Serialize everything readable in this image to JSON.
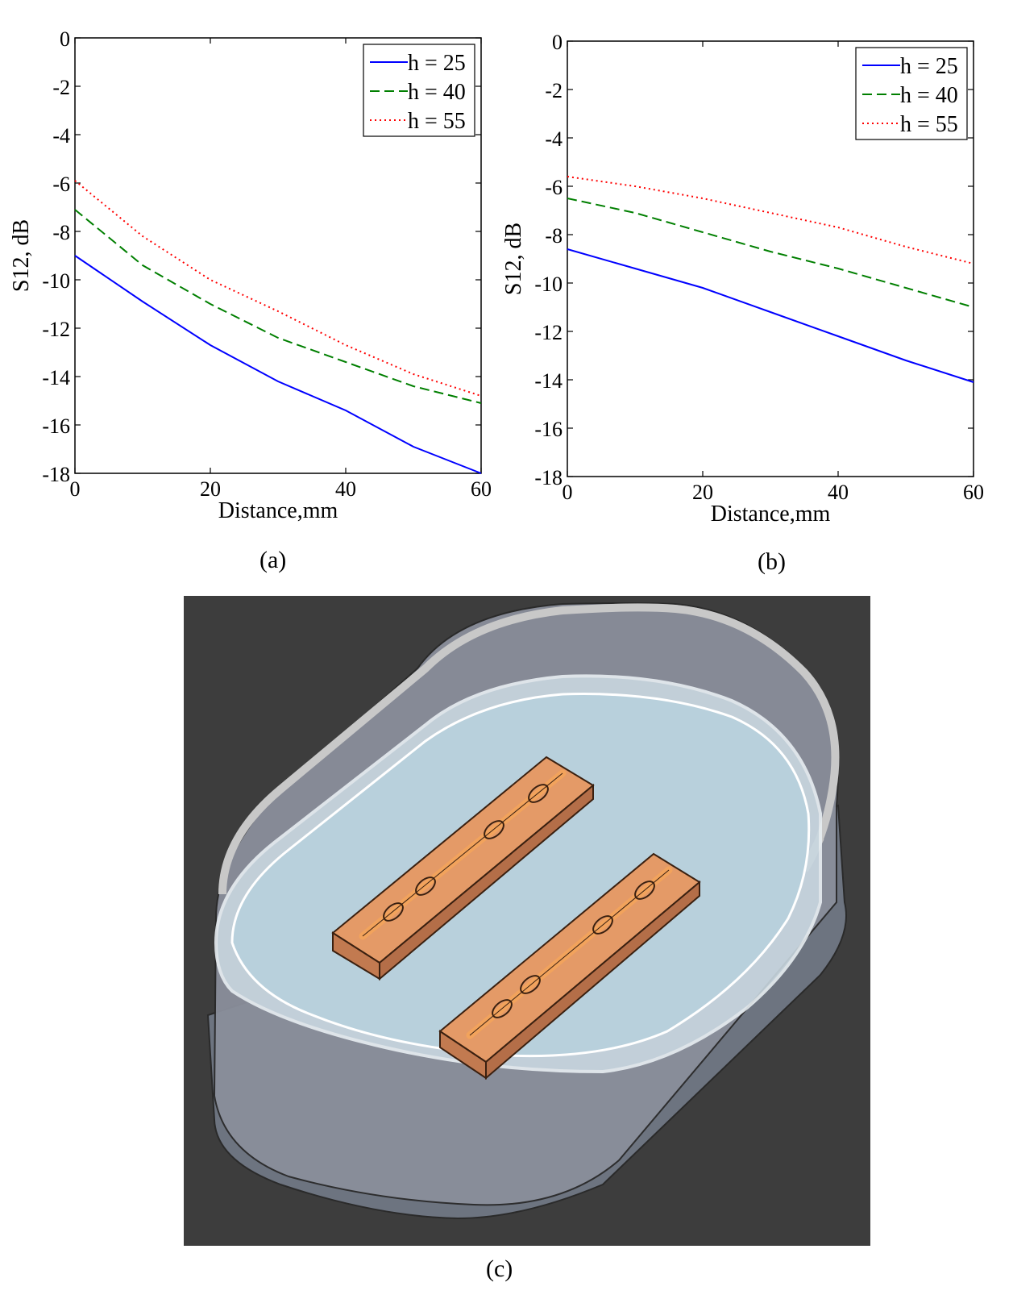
{
  "chart_data": [
    {
      "type": "line",
      "panel": "(a)",
      "xlabel": "Distance,mm",
      "ylabel": "S12, dB",
      "xlim": [
        0,
        60
      ],
      "ylim": [
        -18,
        0
      ],
      "xticks": [
        0,
        20,
        40,
        60
      ],
      "yticks": [
        0,
        -2,
        -4,
        -6,
        -8,
        -10,
        -12,
        -14,
        -16,
        -18
      ],
      "legend_position": "top-right",
      "grid": false,
      "x": [
        0,
        10,
        20,
        30,
        40,
        50,
        60
      ],
      "series": [
        {
          "name": "h = 25",
          "color": "#0000ff",
          "style": "solid",
          "values": [
            -9.0,
            -10.9,
            -12.7,
            -14.2,
            -15.4,
            -16.9,
            -18.0
          ]
        },
        {
          "name": "h = 40",
          "color": "#007f00",
          "style": "dashed",
          "values": [
            -7.1,
            -9.4,
            -11.0,
            -12.4,
            -13.4,
            -14.4,
            -15.1
          ]
        },
        {
          "name": "h = 55",
          "color": "#ff0000",
          "style": "dotted",
          "values": [
            -5.9,
            -8.2,
            -10.0,
            -11.3,
            -12.7,
            -13.9,
            -14.8
          ]
        }
      ]
    },
    {
      "type": "line",
      "panel": "(b)",
      "xlabel": "Distance,mm",
      "ylabel": "S12, dB",
      "xlim": [
        0,
        60
      ],
      "ylim": [
        -18,
        0
      ],
      "xticks": [
        0,
        20,
        40,
        60
      ],
      "yticks": [
        0,
        -2,
        -4,
        -6,
        -8,
        -10,
        -12,
        -14,
        -16,
        -18
      ],
      "legend_position": "top-right",
      "grid": false,
      "x": [
        0,
        10,
        20,
        30,
        40,
        50,
        60
      ],
      "series": [
        {
          "name": "h = 25",
          "color": "#0000ff",
          "style": "solid",
          "values": [
            -8.6,
            -9.4,
            -10.2,
            -11.2,
            -12.2,
            -13.2,
            -14.1
          ]
        },
        {
          "name": "h = 40",
          "color": "#007f00",
          "style": "dashed",
          "values": [
            -6.5,
            -7.1,
            -7.9,
            -8.7,
            -9.4,
            -10.2,
            -11.0
          ]
        },
        {
          "name": "h = 55",
          "color": "#ff0000",
          "style": "dotted",
          "values": [
            -5.6,
            -6.0,
            -6.5,
            -7.1,
            -7.7,
            -8.5,
            -9.2
          ]
        }
      ]
    }
  ],
  "figure_c": {
    "caption": "(c)",
    "colors": {
      "background": "#3d3d3d",
      "container_wall": "#8c8f99",
      "liquid": "#b8d0dc",
      "substrate": "#e49a67",
      "trace": "#f2a35c"
    }
  }
}
